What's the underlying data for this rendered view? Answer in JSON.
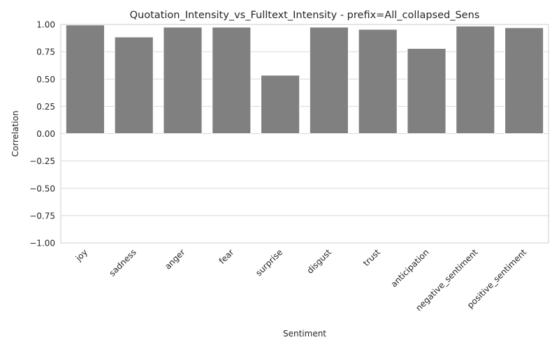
{
  "chart_data": {
    "type": "bar",
    "title": "Quotation_Intensity_vs_Fulltext_Intensity - prefix=All_collapsed_Sens",
    "xlabel": "Sentiment",
    "ylabel": "Correlation",
    "ylim": [
      -1.0,
      1.0
    ],
    "yticks": [
      -1.0,
      -0.75,
      -0.5,
      -0.25,
      0.0,
      0.25,
      0.5,
      0.75,
      1.0
    ],
    "ytick_labels": [
      "−1.00",
      "−0.75",
      "−0.50",
      "−0.25",
      "0.00",
      "0.25",
      "0.50",
      "0.75",
      "1.00"
    ],
    "categories": [
      "joy",
      "sadness",
      "anger",
      "fear",
      "surprise",
      "disgust",
      "trust",
      "anticipation",
      "negative_sentiment",
      "positive_sentiment"
    ],
    "values": [
      0.995,
      0.885,
      0.975,
      0.975,
      0.535,
      0.975,
      0.955,
      0.78,
      0.985,
      0.97
    ],
    "bar_color": "#808080",
    "grid": "horizontal"
  }
}
